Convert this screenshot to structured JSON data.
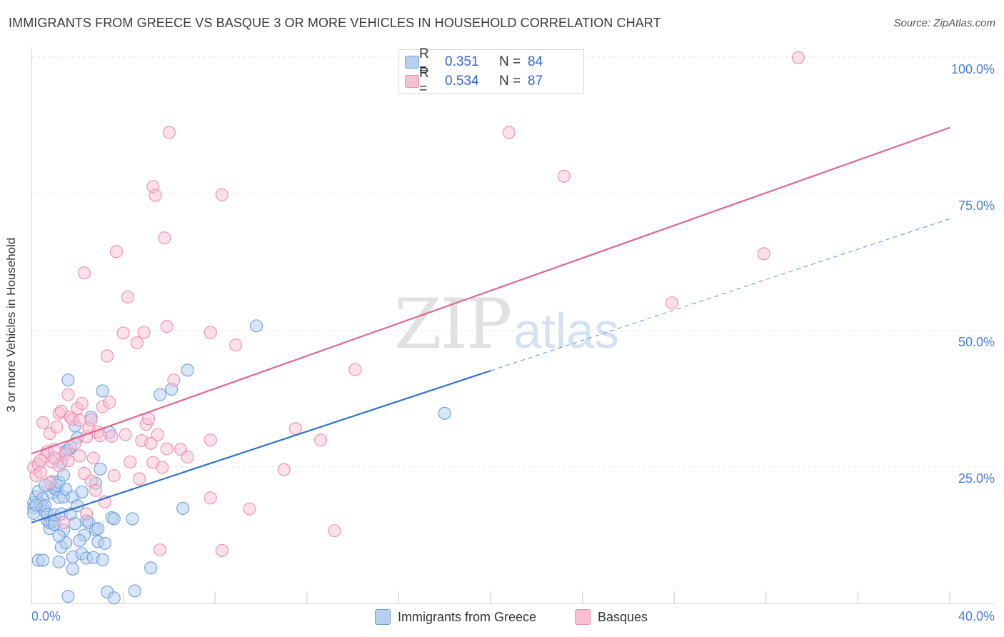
{
  "header": {
    "title": "IMMIGRANTS FROM GREECE VS BASQUE 3 OR MORE VEHICLES IN HOUSEHOLD CORRELATION CHART",
    "source": "Source: ZipAtlas.com"
  },
  "watermark": {
    "zip": "ZIP",
    "atlas": "atlas"
  },
  "colors": {
    "blue_fill": "#b7d0f0",
    "blue_stroke": "#6f9fdc",
    "blue_line": "#2f72d0",
    "pink_fill": "#f7c0d3",
    "pink_stroke": "#ec8fb0",
    "pink_line": "#e0668f",
    "grid": "#e3e3e3",
    "axis_label": "#4a7fd0"
  },
  "legend": {
    "rows": [
      {
        "r_label": "R =",
        "r_value": "0.351",
        "n_label": "N =",
        "n_value": "84"
      },
      {
        "r_label": "R =",
        "r_value": "0.534",
        "n_label": "N =",
        "n_value": "87"
      }
    ]
  },
  "bottom_legend": [
    {
      "label": "Immigrants from Greece"
    },
    {
      "label": "Basques"
    }
  ],
  "chart_data": {
    "type": "scatter",
    "title": "IMMIGRANTS FROM GREECE VS BASQUE 3 OR MORE VEHICLES IN HOUSEHOLD CORRELATION CHART",
    "xlabel": "",
    "ylabel": "3 or more Vehicles in Household",
    "xlim": [
      0,
      40
    ],
    "ylim": [
      0,
      100
    ],
    "x_tick_labels": [
      "0.0%",
      "40.0%"
    ],
    "y_tick_labels": [
      {
        "value": 100,
        "label": "100.0%"
      },
      {
        "value": 75,
        "label": "75.0%"
      },
      {
        "value": 50,
        "label": "50.0%"
      },
      {
        "value": 25,
        "label": "25.0%"
      }
    ],
    "series": [
      {
        "name": "Immigrants from Greece",
        "R": 0.351,
        "N": 84,
        "trend": {
          "x0": 0,
          "y0": 14.8,
          "x1": 20,
          "y1": 42.6,
          "dashed_to_x": 40,
          "dashed_to_y": 70.4
        },
        "points": [
          [
            0.1,
            18.4
          ],
          [
            0.1,
            17.5
          ],
          [
            0.1,
            16.5
          ],
          [
            0.2,
            19.5
          ],
          [
            0.3,
            7.9
          ],
          [
            0.3,
            20.5
          ],
          [
            0.4,
            17.9
          ],
          [
            0.4,
            18.2
          ],
          [
            0.5,
            19.2
          ],
          [
            0.5,
            17.6
          ],
          [
            0.6,
            16.8
          ],
          [
            0.6,
            17.9
          ],
          [
            0.7,
            15.2
          ],
          [
            0.7,
            16.3
          ],
          [
            0.8,
            13.7
          ],
          [
            0.8,
            14.8
          ],
          [
            0.9,
            22.3
          ],
          [
            0.9,
            20.2
          ],
          [
            0.9,
            14.9
          ],
          [
            1.0,
            21.1
          ],
          [
            1.0,
            15.2
          ],
          [
            1.0,
            14.5
          ],
          [
            1.0,
            16.2
          ],
          [
            1.1,
            20.8
          ],
          [
            1.1,
            21.6
          ],
          [
            1.2,
            19.4
          ],
          [
            1.2,
            22.2
          ],
          [
            1.2,
            7.6
          ],
          [
            1.3,
            10.3
          ],
          [
            1.3,
            16.4
          ],
          [
            1.4,
            19.5
          ],
          [
            1.4,
            23.5
          ],
          [
            1.4,
            13.4
          ],
          [
            1.5,
            27.9
          ],
          [
            1.5,
            20.9
          ],
          [
            1.5,
            11.1
          ],
          [
            1.6,
            28.1
          ],
          [
            1.6,
            40.9
          ],
          [
            1.6,
            1.3
          ],
          [
            1.7,
            28.6
          ],
          [
            1.7,
            16.4
          ],
          [
            1.8,
            8.5
          ],
          [
            1.8,
            6.3
          ],
          [
            1.8,
            19.5
          ],
          [
            1.9,
            32.5
          ],
          [
            1.9,
            14.6
          ],
          [
            2.0,
            30.3
          ],
          [
            2.0,
            17.9
          ],
          [
            2.2,
            20.4
          ],
          [
            2.2,
            9.1
          ],
          [
            2.3,
            12.5
          ],
          [
            2.4,
            15.1
          ],
          [
            2.4,
            8.3
          ],
          [
            2.5,
            14.8
          ],
          [
            2.6,
            34.1
          ],
          [
            2.7,
            8.4
          ],
          [
            2.8,
            22.0
          ],
          [
            2.8,
            13.5
          ],
          [
            2.9,
            11.3
          ],
          [
            3.0,
            24.6
          ],
          [
            3.1,
            38.9
          ],
          [
            3.1,
            8.0
          ],
          [
            3.2,
            11.0
          ],
          [
            3.3,
            2.1
          ],
          [
            3.4,
            31.3
          ],
          [
            3.5,
            15.7
          ],
          [
            3.6,
            1.0
          ],
          [
            3.6,
            15.5
          ],
          [
            4.4,
            15.5
          ],
          [
            4.5,
            2.3
          ],
          [
            5.2,
            6.5
          ],
          [
            5.6,
            38.2
          ],
          [
            6.1,
            39.2
          ],
          [
            6.6,
            17.4
          ],
          [
            6.8,
            42.7
          ],
          [
            9.8,
            50.8
          ],
          [
            18.0,
            34.8
          ],
          [
            0.5,
            7.9
          ],
          [
            1.2,
            12.4
          ],
          [
            2.1,
            11.5
          ],
          [
            0.2,
            18.0
          ],
          [
            0.6,
            21.6
          ],
          [
            1.3,
            25.8
          ],
          [
            2.9,
            13.7
          ]
        ]
      },
      {
        "name": "Basques",
        "R": 0.534,
        "N": 87,
        "trend": {
          "x0": 0,
          "y0": 27.4,
          "x1": 40,
          "y1": 87.1
        },
        "points": [
          [
            0.1,
            24.9
          ],
          [
            0.2,
            23.4
          ],
          [
            0.3,
            25.5
          ],
          [
            0.4,
            24.0
          ],
          [
            0.5,
            33.1
          ],
          [
            0.6,
            26.9
          ],
          [
            0.7,
            27.8
          ],
          [
            0.8,
            31.1
          ],
          [
            0.8,
            22.1
          ],
          [
            0.9,
            25.9
          ],
          [
            1.0,
            28.2
          ],
          [
            1.1,
            32.3
          ],
          [
            1.2,
            25.2
          ],
          [
            1.2,
            34.8
          ],
          [
            1.3,
            35.2
          ],
          [
            1.4,
            14.8
          ],
          [
            1.5,
            27.4
          ],
          [
            1.6,
            38.2
          ],
          [
            1.6,
            26.1
          ],
          [
            1.7,
            34.1
          ],
          [
            1.8,
            33.7
          ],
          [
            1.9,
            29.3
          ],
          [
            2.0,
            35.7
          ],
          [
            2.1,
            33.5
          ],
          [
            2.1,
            27.0
          ],
          [
            2.2,
            36.6
          ],
          [
            2.3,
            60.5
          ],
          [
            2.3,
            23.8
          ],
          [
            2.4,
            30.5
          ],
          [
            2.5,
            32.1
          ],
          [
            2.6,
            22.4
          ],
          [
            2.6,
            33.6
          ],
          [
            2.7,
            26.6
          ],
          [
            2.8,
            20.7
          ],
          [
            2.9,
            31.4
          ],
          [
            3.0,
            30.7
          ],
          [
            3.1,
            36.0
          ],
          [
            3.2,
            18.6
          ],
          [
            3.3,
            45.3
          ],
          [
            3.4,
            36.8
          ],
          [
            3.6,
            23.4
          ],
          [
            3.7,
            64.4
          ],
          [
            4.0,
            49.5
          ],
          [
            4.1,
            30.9
          ],
          [
            4.2,
            56.1
          ],
          [
            4.3,
            25.9
          ],
          [
            4.6,
            47.7
          ],
          [
            4.7,
            22.8
          ],
          [
            4.8,
            29.8
          ],
          [
            4.9,
            49.6
          ],
          [
            5.0,
            32.8
          ],
          [
            5.1,
            33.8
          ],
          [
            5.2,
            29.3
          ],
          [
            5.3,
            76.3
          ],
          [
            5.3,
            25.8
          ],
          [
            5.4,
            74.7
          ],
          [
            5.5,
            30.9
          ],
          [
            5.6,
            9.8
          ],
          [
            5.7,
            24.9
          ],
          [
            5.8,
            66.9
          ],
          [
            5.9,
            28.3
          ],
          [
            5.9,
            50.7
          ],
          [
            6.0,
            86.2
          ],
          [
            6.2,
            40.9
          ],
          [
            6.5,
            28.2
          ],
          [
            6.8,
            26.8
          ],
          [
            7.8,
            49.6
          ],
          [
            7.8,
            29.9
          ],
          [
            7.8,
            19.3
          ],
          [
            8.3,
            74.8
          ],
          [
            8.3,
            9.7
          ],
          [
            8.9,
            47.3
          ],
          [
            9.5,
            17.3
          ],
          [
            11.0,
            24.5
          ],
          [
            11.5,
            32.0
          ],
          [
            12.6,
            29.9
          ],
          [
            13.2,
            13.3
          ],
          [
            14.1,
            42.8
          ],
          [
            20.8,
            86.2
          ],
          [
            23.2,
            78.2
          ],
          [
            27.9,
            55.0
          ],
          [
            31.9,
            64.0
          ],
          [
            33.4,
            99.9
          ],
          [
            0.4,
            26.2
          ],
          [
            1.0,
            26.6
          ],
          [
            2.4,
            16.4
          ],
          [
            3.5,
            30.6
          ]
        ]
      }
    ]
  }
}
